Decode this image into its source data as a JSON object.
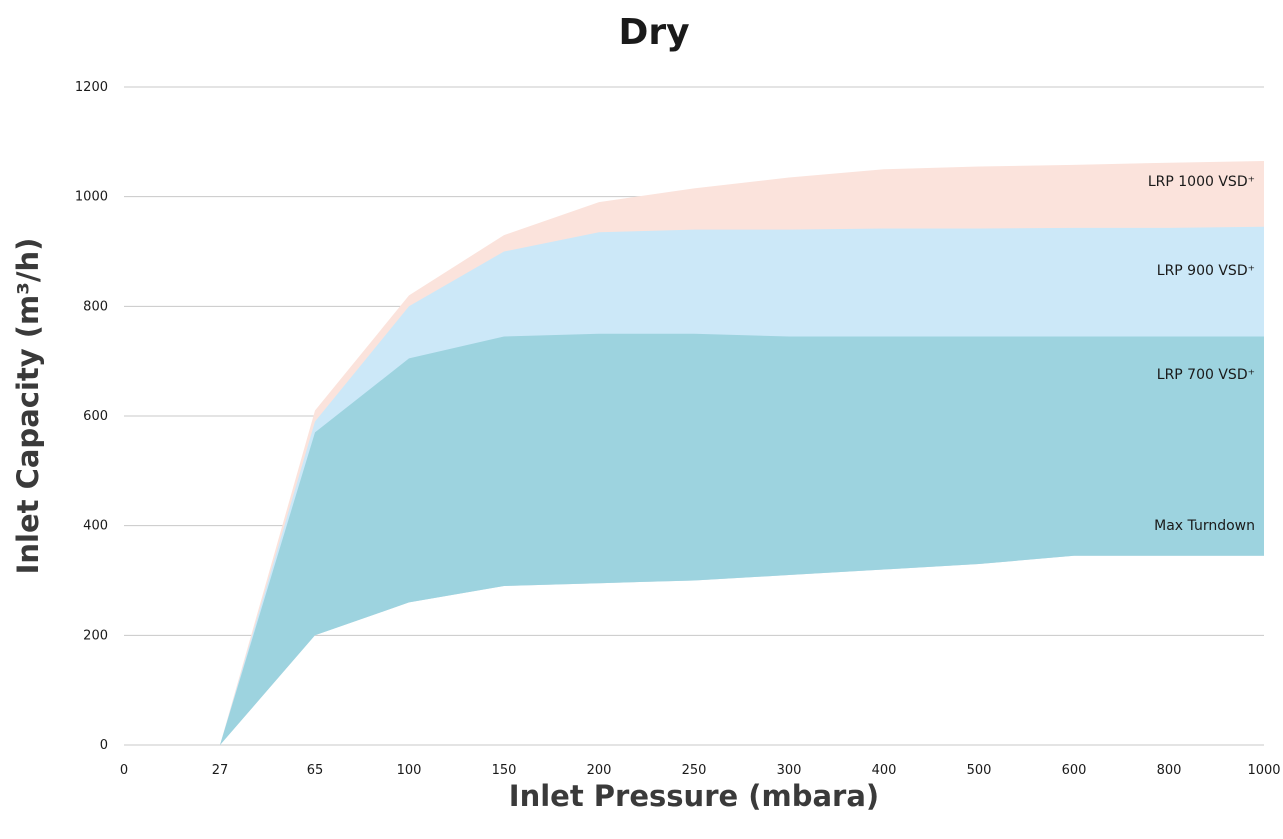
{
  "chart_data": {
    "type": "area",
    "title": "Dry",
    "xlabel": "Inlet Pressure (mbara)",
    "ylabel": "Inlet Capacity (m³/h)",
    "x_ticks": [
      "0",
      "27",
      "65",
      "100",
      "150",
      "200",
      "250",
      "300",
      "400",
      "500",
      "600",
      "800",
      "1000"
    ],
    "y_ticks": [
      0,
      200,
      400,
      600,
      800,
      1000,
      1200
    ],
    "ylim": [
      0,
      1200
    ],
    "grid": "horizontal",
    "colors": {
      "lrp1000": "#fbe3dc",
      "lrp900": "#cce8f8",
      "lrp700": "#9dd3df",
      "grid": "#c8c8c8"
    },
    "series": [
      {
        "name": "LRP 1000 VSD⁺",
        "x": [
          27,
          65,
          100,
          150,
          200,
          250,
          300,
          400,
          500,
          600,
          800,
          1000
        ],
        "values": [
          0,
          610,
          820,
          930,
          990,
          1015,
          1035,
          1050,
          1055,
          1058,
          1062,
          1065
        ]
      },
      {
        "name": "LRP 900 VSD⁺",
        "x": [
          27,
          65,
          100,
          150,
          200,
          250,
          300,
          400,
          500,
          600,
          800,
          1000
        ],
        "values": [
          0,
          590,
          800,
          900,
          935,
          940,
          940,
          942,
          942,
          943,
          943,
          945
        ]
      },
      {
        "name": "LRP 700 VSD⁺",
        "x": [
          27,
          65,
          100,
          150,
          200,
          250,
          300,
          400,
          500,
          600,
          800,
          1000
        ],
        "values": [
          0,
          570,
          705,
          745,
          750,
          750,
          745,
          745,
          745,
          745,
          745,
          745
        ]
      },
      {
        "name": "Max Turndown",
        "x": [
          27,
          65,
          100,
          150,
          200,
          250,
          300,
          400,
          500,
          600,
          800,
          1000
        ],
        "values": [
          0,
          200,
          260,
          290,
          295,
          300,
          310,
          320,
          330,
          345,
          345,
          345
        ]
      }
    ]
  }
}
